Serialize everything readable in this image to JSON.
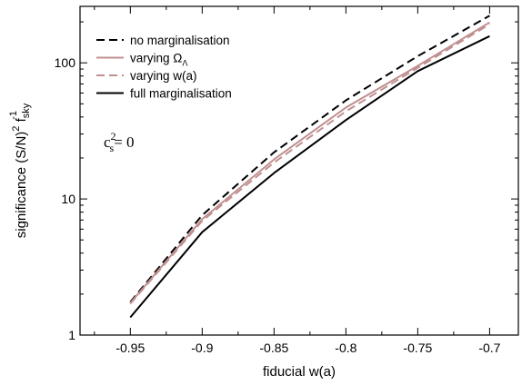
{
  "chart_data": {
    "type": "line",
    "xlabel": "fiducial w(a)",
    "ylabel": {
      "main": "significance (S/N)",
      "sup1": "2",
      "f": " f",
      "sub": "sky",
      "sup2": "-1"
    },
    "xlim": [
      -0.985,
      -0.68
    ],
    "ylim": [
      1,
      260
    ],
    "yscale": "log",
    "x_ticks": [
      -0.95,
      -0.9,
      -0.85,
      -0.8,
      -0.75,
      -0.7
    ],
    "x_tick_labels": [
      "-0.95",
      "-0.9",
      "-0.85",
      "-0.8",
      "-0.75",
      "-0.7"
    ],
    "y_ticks": [
      1,
      10,
      100
    ],
    "y_tick_labels": [
      "1",
      "10",
      "100"
    ],
    "grid": false,
    "legend_position": "top-left",
    "annotation": {
      "base": "c",
      "sub": "s",
      "sup": "2",
      "rest": "= 0"
    },
    "series": [
      {
        "name": "no marginalisation",
        "color": "#000000",
        "dash": "dashed",
        "x": [
          -0.95,
          -0.9,
          -0.85,
          -0.8,
          -0.75,
          -0.7
        ],
        "y": [
          1.75,
          7.6,
          22,
          53,
          112,
          222
        ]
      },
      {
        "name": "varying Ω",
        "name_sub": "Λ",
        "color": "#c09090",
        "dash": "solid",
        "x": [
          -0.95,
          -0.9,
          -0.85,
          -0.8,
          -0.75,
          -0.7
        ],
        "y": [
          1.72,
          7.1,
          19.5,
          47,
          95,
          198
        ]
      },
      {
        "name": "varying w(a)",
        "color": "#c09090",
        "dash": "dashed",
        "x": [
          -0.95,
          -0.9,
          -0.85,
          -0.8,
          -0.75,
          -0.7
        ],
        "y": [
          1.7,
          6.9,
          18.5,
          44,
          92,
          192
        ]
      },
      {
        "name": "full marginalisation",
        "color": "#000000",
        "dash": "solid",
        "x": [
          -0.95,
          -0.9,
          -0.85,
          -0.8,
          -0.75,
          -0.7
        ],
        "y": [
          1.35,
          5.7,
          15.5,
          38,
          87,
          157
        ]
      }
    ]
  }
}
